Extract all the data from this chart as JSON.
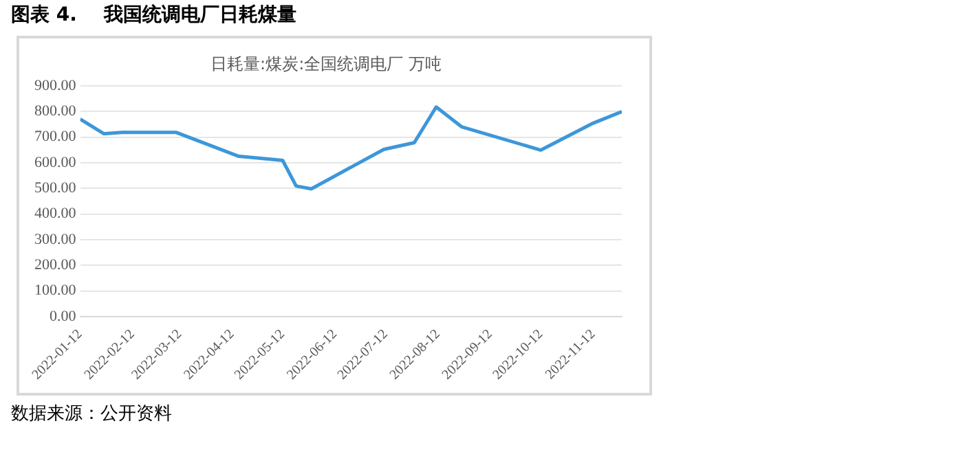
{
  "chart_data": {
    "type": "line",
    "title": "图表 4.    我国统调电厂日耗煤量",
    "subtitle": "日耗量:煤炭:全国统调电厂 万吨",
    "x": [
      "2022-01-12",
      "2022-01-26",
      "2022-02-06",
      "2022-03-10",
      "2022-04-16",
      "2022-05-12",
      "2022-05-20",
      "2022-05-29",
      "2022-07-11",
      "2022-07-29",
      "2022-08-11",
      "2022-08-26",
      "2022-10-12",
      "2022-11-12",
      "2022-11-29"
    ],
    "series": [
      {
        "color": "#3d97d9",
        "values": [
          770,
          713,
          718,
          718,
          625,
          609,
          509,
          498,
          652,
          678,
          817,
          740,
          649,
          754,
          799
        ]
      }
    ],
    "xlim": [
      "2022-01-12",
      "2022-11-29"
    ],
    "xticks": [
      "2022-01-12",
      "2022-02-12",
      "2022-03-12",
      "2022-04-12",
      "2022-05-12",
      "2022-06-12",
      "2022-07-12",
      "2022-08-12",
      "2022-09-12",
      "2022-10-12",
      "2022-11-12"
    ],
    "ylim": [
      0,
      900
    ],
    "yticks": [
      {
        "value": 0,
        "label": "0.00"
      },
      {
        "value": 100,
        "label": "100.00"
      },
      {
        "value": 200,
        "label": "200.00"
      },
      {
        "value": 300,
        "label": "300.00"
      },
      {
        "value": 400,
        "label": "400.00"
      },
      {
        "value": 500,
        "label": "500.00"
      },
      {
        "value": 600,
        "label": "600.00"
      },
      {
        "value": 700,
        "label": "700.00"
      },
      {
        "value": 800,
        "label": "800.00"
      },
      {
        "value": 900,
        "label": "900.00"
      }
    ],
    "grid": "y",
    "legend": false,
    "marker": "none",
    "line_style": "solid",
    "annotations": [
      "数据来源：公开资料"
    ]
  }
}
